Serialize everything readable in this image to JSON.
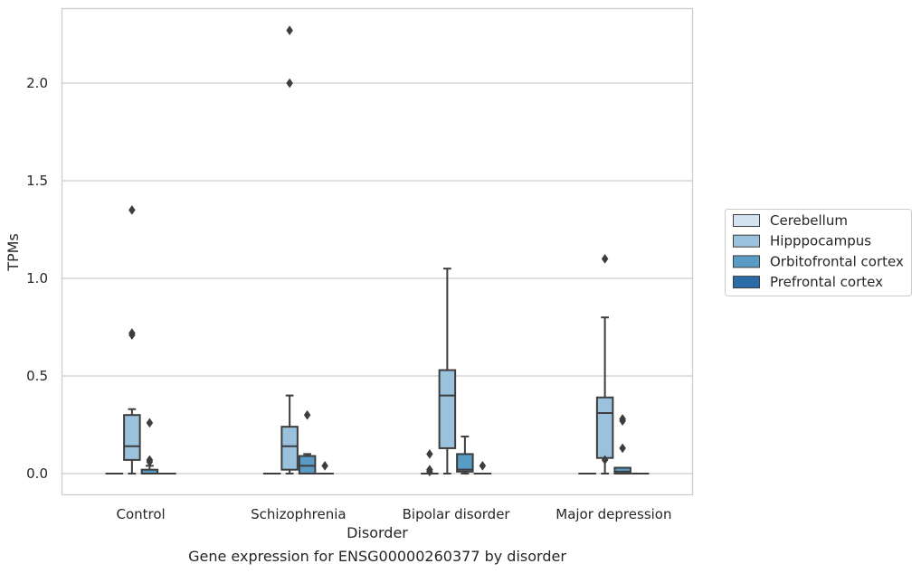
{
  "chart_data": {
    "type": "boxplot",
    "title": "",
    "xlabel": "Disorder",
    "ylabel": "TPMs",
    "caption": "Gene expression for ENSG00000260377 by disorder",
    "ylim": [
      -0.11,
      2.39
    ],
    "yticks": [
      0.0,
      0.5,
      1.0,
      1.5,
      2.0
    ],
    "ytick_labels": [
      "0.0",
      "0.5",
      "1.0",
      "1.5",
      "2.0"
    ],
    "grid": "horizontal",
    "legend_position": "right",
    "categories": [
      "Control",
      "Schizophrenia",
      "Bipolar disorder",
      "Major depression"
    ],
    "series": [
      {
        "name": "Cerebellum",
        "color": "#d4e3f2",
        "boxes": [
          {
            "q1": 0.0,
            "median": 0.0,
            "q3": 0.0,
            "whislo": 0.0,
            "whishi": 0.0,
            "fliers": []
          },
          {
            "q1": 0.0,
            "median": 0.0,
            "q3": 0.0,
            "whislo": 0.0,
            "whishi": 0.0,
            "fliers": []
          },
          {
            "q1": 0.0,
            "median": 0.0,
            "q3": 0.0,
            "whislo": 0.0,
            "whishi": 0.0,
            "fliers": [
              0.1,
              0.02,
              0.01
            ]
          },
          {
            "q1": 0.0,
            "median": 0.0,
            "q3": 0.0,
            "whislo": 0.0,
            "whishi": 0.0,
            "fliers": []
          }
        ]
      },
      {
        "name": "Hipppocampus",
        "color": "#9ac2dd",
        "boxes": [
          {
            "q1": 0.07,
            "median": 0.14,
            "q3": 0.3,
            "whislo": 0.0,
            "whishi": 0.33,
            "fliers": [
              0.71,
              0.72,
              1.35
            ]
          },
          {
            "q1": 0.02,
            "median": 0.14,
            "q3": 0.24,
            "whislo": 0.0,
            "whishi": 0.4,
            "fliers": [
              2.0,
              2.27
            ]
          },
          {
            "q1": 0.13,
            "median": 0.4,
            "q3": 0.53,
            "whislo": 0.0,
            "whishi": 1.05,
            "fliers": []
          },
          {
            "q1": 0.08,
            "median": 0.31,
            "q3": 0.39,
            "whislo": 0.0,
            "whishi": 0.8,
            "fliers": [
              0.07,
              1.1
            ]
          }
        ]
      },
      {
        "name": "Orbitofrontal cortex",
        "color": "#5a9bc6",
        "boxes": [
          {
            "q1": 0.0,
            "median": 0.0,
            "q3": 0.02,
            "whislo": 0.0,
            "whishi": 0.04,
            "fliers": [
              0.26,
              0.07,
              0.06
            ]
          },
          {
            "q1": 0.0,
            "median": 0.04,
            "q3": 0.09,
            "whislo": 0.0,
            "whishi": 0.1,
            "fliers": [
              0.3
            ]
          },
          {
            "q1": 0.01,
            "median": 0.02,
            "q3": 0.1,
            "whislo": 0.0,
            "whishi": 0.19,
            "fliers": []
          },
          {
            "q1": 0.0,
            "median": 0.01,
            "q3": 0.03,
            "whislo": 0.0,
            "whishi": 0.03,
            "fliers": [
              0.27,
              0.28,
              0.13
            ]
          }
        ]
      },
      {
        "name": "Prefrontal cortex",
        "color": "#2c6ba9",
        "boxes": [
          {
            "q1": 0.0,
            "median": 0.0,
            "q3": 0.0,
            "whislo": 0.0,
            "whishi": 0.0,
            "fliers": []
          },
          {
            "q1": 0.0,
            "median": 0.0,
            "q3": 0.0,
            "whislo": 0.0,
            "whishi": 0.0,
            "fliers": [
              0.04
            ]
          },
          {
            "q1": 0.0,
            "median": 0.0,
            "q3": 0.0,
            "whislo": 0.0,
            "whishi": 0.0,
            "fliers": [
              0.04
            ]
          },
          {
            "q1": 0.0,
            "median": 0.0,
            "q3": 0.0,
            "whislo": 0.0,
            "whishi": 0.0,
            "fliers": []
          }
        ]
      }
    ]
  }
}
